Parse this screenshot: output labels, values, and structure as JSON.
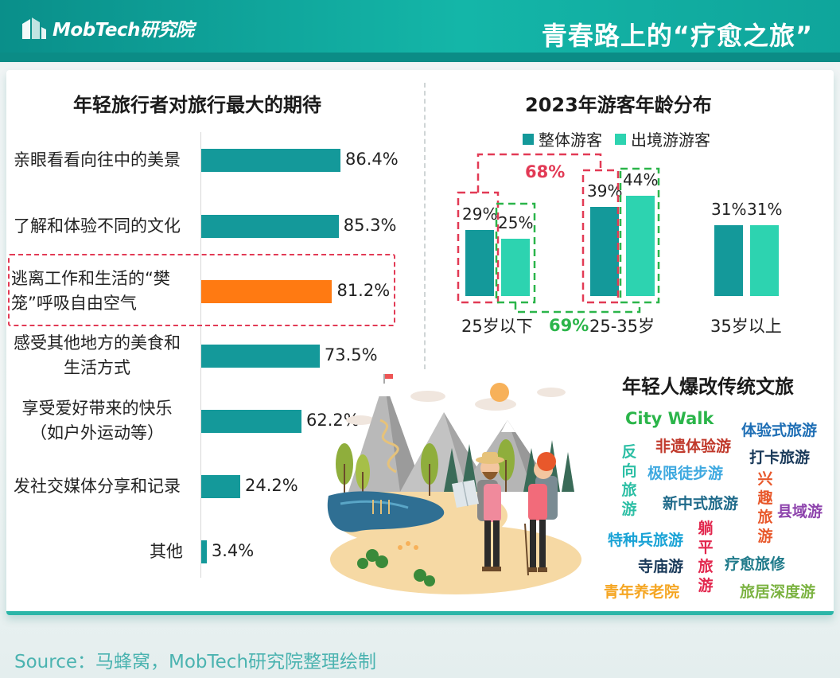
{
  "header": {
    "logo_text": "MobTech研究院",
    "title": "青春路上的“疗愈之旅”"
  },
  "left_chart": {
    "title": "年轻旅行者对旅行最大的期待"
  },
  "right_chart": {
    "title": "2023年游客年龄分布",
    "legend": [
      "整体游客",
      "出境游游客"
    ]
  },
  "annotations": {
    "pct_68": "68%",
    "pct_69": "69%"
  },
  "words": {
    "title": "年轻人爆改传统文旅",
    "tags": [
      "City Walk",
      "非遗体验游",
      "体验式旅游",
      "打卡旅游",
      "反向旅游",
      "极限徒步游",
      "兴趣旅游",
      "新中式旅游",
      "县域游",
      "特种兵旅游",
      "躺平旅游",
      "疗愈旅修",
      "寺庙游",
      "青年养老院",
      "旅居深度游"
    ]
  },
  "chart_data": [
    {
      "type": "bar",
      "orientation": "horizontal",
      "title": "年轻旅行者对旅行最大的期待",
      "categories": [
        "亲眼看看向往中的美景",
        "了解和体验不同的文化",
        "逃离工作和生活的“樊笼”呼吸自由空气",
        "感受其他地方的美食和生活方式",
        "享受爱好带来的快乐（如户外运动等）",
        "发社交媒体分享和记录",
        "其他"
      ],
      "category_lines": [
        [
          "亲眼看看向往中的美景"
        ],
        [
          "了解和体验不同的文化"
        ],
        [
          "逃离工作和生活的“樊",
          "笼”呼吸自由空气"
        ],
        [
          "感受其他地方的美食和",
          "生活方式"
        ],
        [
          "享受爱好带来的快乐",
          "（如户外运动等）"
        ],
        [
          "发社交媒体分享和记录"
        ],
        [
          "其他"
        ]
      ],
      "values": [
        86.4,
        85.3,
        81.2,
        73.5,
        62.2,
        24.2,
        3.4
      ],
      "value_labels": [
        "86.4%",
        "85.3%",
        "81.2%",
        "73.5%",
        "62.2%",
        "24.2%",
        "3.4%"
      ],
      "highlight_index": 2,
      "colors": {
        "default": "#14999a",
        "highlight": "#ff7a12"
      },
      "xlim": [
        0,
        100
      ]
    },
    {
      "type": "bar",
      "title": "2023年游客年龄分布",
      "categories": [
        "25岁以下",
        "25-35岁",
        "35岁以上"
      ],
      "series": [
        {
          "name": "整体游客",
          "values": [
            29,
            39,
            31
          ],
          "labels": [
            "29%",
            "39%",
            "31%"
          ],
          "color": "#14999a"
        },
        {
          "name": "出境游游客",
          "values": [
            25,
            44,
            31
          ],
          "labels": [
            "25%",
            "44%",
            "31%"
          ],
          "color": "#2dd3b0"
        }
      ],
      "ylim": [
        0,
        44
      ],
      "annotations": [
        {
          "text": "68%",
          "series": "整体游客",
          "categories": [
            "25岁以下",
            "25-35岁"
          ],
          "color": "#e23a55"
        },
        {
          "text": "69%",
          "series": "出境游游客",
          "categories": [
            "25岁以下",
            "25-35岁"
          ],
          "color": "#2bb54a"
        }
      ]
    }
  ],
  "source": "Source：马蜂窝，MobTech研究院整理绘制"
}
